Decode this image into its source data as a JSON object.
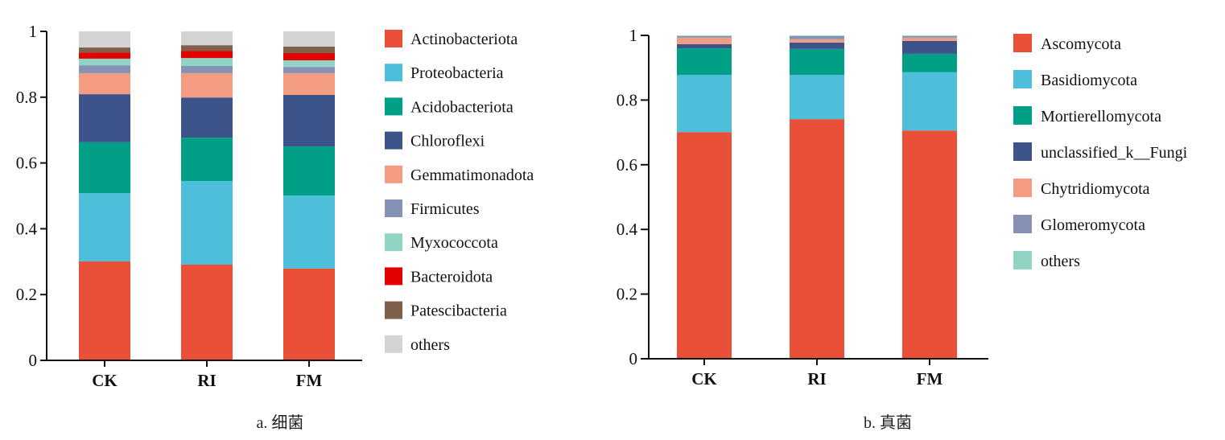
{
  "chart_data": [
    {
      "type": "bar",
      "stacked": true,
      "title": "",
      "caption": "a. 细菌",
      "xlabel": "",
      "ylabel": "",
      "ylim": [
        0,
        1
      ],
      "yticks": [
        "0",
        "0.2",
        "0.4",
        "0.6",
        "0.8",
        "1"
      ],
      "ytick_values": [
        0,
        0.2,
        0.4,
        0.6,
        0.8,
        1
      ],
      "categories": [
        "CK",
        "RI",
        "FM"
      ],
      "legend_position": "right",
      "series": [
        {
          "name": "Actinobacteriota",
          "color": "#EA5038",
          "values": [
            0.301,
            0.291,
            0.279
          ]
        },
        {
          "name": "Proteobacteria",
          "color": "#4DBFDA",
          "values": [
            0.207,
            0.254,
            0.222
          ]
        },
        {
          "name": "Acidobacteriota",
          "color": "#01A086",
          "values": [
            0.155,
            0.132,
            0.149
          ]
        },
        {
          "name": "Chloroflexi",
          "color": "#3C5489",
          "values": [
            0.146,
            0.122,
            0.157
          ]
        },
        {
          "name": "Gemmatimonadota",
          "color": "#F39C82",
          "values": [
            0.064,
            0.074,
            0.066
          ]
        },
        {
          "name": "Firmicutes",
          "color": "#8592B6",
          "values": [
            0.024,
            0.022,
            0.019
          ]
        },
        {
          "name": "Myxococcota",
          "color": "#92D4C4",
          "values": [
            0.02,
            0.024,
            0.02
          ]
        },
        {
          "name": "Bacteroidota",
          "color": "#E30202",
          "values": [
            0.019,
            0.022,
            0.022
          ]
        },
        {
          "name": "Patescibacteria",
          "color": "#7F604B",
          "values": [
            0.015,
            0.017,
            0.02
          ]
        },
        {
          "name": "others",
          "color": "#D4D4D4",
          "values": [
            0.049,
            0.042,
            0.046
          ]
        }
      ]
    },
    {
      "type": "bar",
      "stacked": true,
      "title": "",
      "caption": "b. 真菌",
      "xlabel": "",
      "ylabel": "",
      "ylim": [
        0,
        1
      ],
      "yticks": [
        "0",
        "0.2",
        "0.4",
        "0.6",
        "0.8",
        "1"
      ],
      "ytick_values": [
        0,
        0.2,
        0.4,
        0.6,
        0.8,
        1
      ],
      "categories": [
        "CK",
        "RI",
        "FM"
      ],
      "legend_position": "right",
      "series": [
        {
          "name": "Ascomycota",
          "color": "#EA5038",
          "values": [
            0.701,
            0.741,
            0.706
          ]
        },
        {
          "name": "Basidiomycota",
          "color": "#4DBFDA",
          "values": [
            0.177,
            0.137,
            0.18
          ]
        },
        {
          "name": "Mortierellomycota",
          "color": "#01A086",
          "values": [
            0.082,
            0.08,
            0.057
          ]
        },
        {
          "name": "unclassified_k__Fungi",
          "color": "#3C5489",
          "values": [
            0.013,
            0.02,
            0.04
          ]
        },
        {
          "name": "Chytridiomycota",
          "color": "#F39C82",
          "values": [
            0.02,
            0.01,
            0.01
          ]
        },
        {
          "name": "Glomeromycota",
          "color": "#8592B6",
          "values": [
            0.005,
            0.01,
            0.005
          ]
        },
        {
          "name": "others",
          "color": "#92D4C4",
          "values": [
            0.002,
            0.002,
            0.002
          ]
        }
      ]
    }
  ]
}
